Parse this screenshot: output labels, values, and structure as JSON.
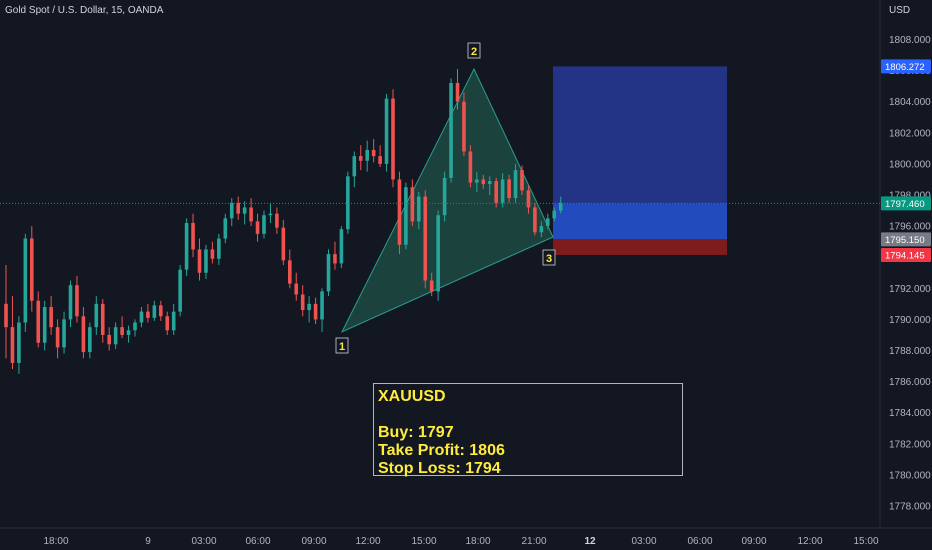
{
  "header": {
    "symbol_title": "Gold Spot / U.S. Dollar, 15, OANDA",
    "currency": "USD"
  },
  "colors": {
    "background": "#131722",
    "bull": "#26a69a",
    "bear": "#ef5350",
    "pattern_fill": "#1e4a42",
    "pattern_stroke": "#2a9d8f",
    "target_zone": "#2a3ea8",
    "stop_zone": "#8b1c1c",
    "entry_zone": "#2962ff",
    "last_price_tag": "#089981",
    "target_tag": "#2962ff",
    "stop_tag": "#f23645",
    "mid_tag": "#787b86",
    "point_label": "#ffeb3b"
  },
  "info_box": {
    "symbol": "XAUUSD",
    "buy": "Buy: 1797",
    "take_profit": "Take Profit: 1806",
    "stop_loss": "Stop Loss: 1794"
  },
  "chart_data": {
    "type": "candlestick",
    "y_ticks": [
      1778,
      1780,
      1782,
      1784,
      1786,
      1788,
      1790,
      1792,
      1794,
      1796,
      1798,
      1800,
      1802,
      1804,
      1806,
      1808
    ],
    "x_ticks": [
      {
        "label": "18:00",
        "bold": false
      },
      {
        "label": "9",
        "bold": false
      },
      {
        "label": "03:00",
        "bold": false
      },
      {
        "label": "06:00",
        "bold": false
      },
      {
        "label": "09:00",
        "bold": false
      },
      {
        "label": "12:00",
        "bold": false
      },
      {
        "label": "15:00",
        "bold": false
      },
      {
        "label": "18:00",
        "bold": false
      },
      {
        "label": "21:00",
        "bold": false
      },
      {
        "label": "12",
        "bold": true
      },
      {
        "label": "03:00",
        "bold": false
      },
      {
        "label": "06:00",
        "bold": false
      },
      {
        "label": "09:00",
        "bold": false
      },
      {
        "label": "12:00",
        "bold": false
      },
      {
        "label": "15:00",
        "bold": false
      }
    ],
    "price_tags": [
      {
        "label": "1806.272",
        "value": 1806.272,
        "kind": "target"
      },
      {
        "label": "1797.460",
        "value": 1797.46,
        "kind": "last"
      },
      {
        "label": "1795.150",
        "value": 1795.15,
        "kind": "mid"
      },
      {
        "label": "1794.145",
        "value": 1794.145,
        "kind": "stop"
      }
    ],
    "pattern_points": [
      {
        "label": "1",
        "value": 1789.2
      },
      {
        "label": "2",
        "value": 1806.1
      },
      {
        "label": "3",
        "value": 1795.3
      }
    ],
    "position": {
      "entry": 1797.46,
      "target": 1806.272,
      "stop": 1794.145
    },
    "candles": [
      [
        1791.0,
        1793.5,
        1787.5,
        1789.5
      ],
      [
        1789.5,
        1791.5,
        1786.8,
        1787.2
      ],
      [
        1787.2,
        1790.2,
        1786.5,
        1789.8
      ],
      [
        1789.8,
        1795.5,
        1789.2,
        1795.2
      ],
      [
        1795.2,
        1796.0,
        1790.5,
        1791.2
      ],
      [
        1791.2,
        1791.8,
        1788.2,
        1788.5
      ],
      [
        1788.5,
        1791.2,
        1788.0,
        1790.8
      ],
      [
        1790.8,
        1791.5,
        1789.0,
        1789.5
      ],
      [
        1789.5,
        1790.0,
        1787.5,
        1788.2
      ],
      [
        1788.2,
        1790.5,
        1787.8,
        1790.0
      ],
      [
        1790.0,
        1792.5,
        1789.5,
        1792.2
      ],
      [
        1792.2,
        1792.8,
        1789.8,
        1790.2
      ],
      [
        1790.2,
        1790.8,
        1787.5,
        1787.9
      ],
      [
        1787.9,
        1789.8,
        1787.5,
        1789.5
      ],
      [
        1789.5,
        1791.5,
        1789.0,
        1791.0
      ],
      [
        1791.0,
        1791.3,
        1788.5,
        1789.0
      ],
      [
        1789.0,
        1789.5,
        1788.0,
        1788.4
      ],
      [
        1788.4,
        1789.8,
        1788.1,
        1789.5
      ],
      [
        1789.5,
        1790.2,
        1788.8,
        1789.0
      ],
      [
        1789.0,
        1789.6,
        1788.5,
        1789.3
      ],
      [
        1789.3,
        1790.0,
        1788.9,
        1789.8
      ],
      [
        1789.8,
        1790.8,
        1789.5,
        1790.5
      ],
      [
        1790.5,
        1791.0,
        1789.8,
        1790.1
      ],
      [
        1790.1,
        1791.2,
        1789.9,
        1790.9
      ],
      [
        1790.9,
        1791.2,
        1789.9,
        1790.2
      ],
      [
        1790.2,
        1790.5,
        1789.0,
        1789.3
      ],
      [
        1789.3,
        1791.0,
        1789.0,
        1790.5
      ],
      [
        1790.5,
        1793.5,
        1790.2,
        1793.2
      ],
      [
        1793.2,
        1796.5,
        1792.8,
        1796.2
      ],
      [
        1796.2,
        1796.8,
        1794.0,
        1794.5
      ],
      [
        1794.5,
        1795.2,
        1792.5,
        1793.0
      ],
      [
        1793.0,
        1794.8,
        1792.6,
        1794.5
      ],
      [
        1794.5,
        1795.0,
        1793.6,
        1793.9
      ],
      [
        1793.9,
        1795.5,
        1793.5,
        1795.2
      ],
      [
        1795.2,
        1796.8,
        1794.9,
        1796.5
      ],
      [
        1796.5,
        1797.8,
        1796.0,
        1797.5
      ],
      [
        1797.5,
        1797.9,
        1796.4,
        1796.8
      ],
      [
        1796.8,
        1797.6,
        1796.1,
        1797.2
      ],
      [
        1797.2,
        1797.8,
        1796.0,
        1796.3
      ],
      [
        1796.3,
        1796.8,
        1795.0,
        1795.5
      ],
      [
        1795.5,
        1797.0,
        1795.2,
        1796.7
      ],
      [
        1796.7,
        1797.5,
        1796.2,
        1796.8
      ],
      [
        1796.8,
        1797.2,
        1795.5,
        1795.9
      ],
      [
        1795.9,
        1796.4,
        1793.5,
        1793.8
      ],
      [
        1793.8,
        1794.5,
        1792.0,
        1792.3
      ],
      [
        1792.3,
        1793.0,
        1791.2,
        1791.6
      ],
      [
        1791.6,
        1792.2,
        1790.2,
        1790.6
      ],
      [
        1790.6,
        1791.5,
        1789.8,
        1791.0
      ],
      [
        1791.0,
        1791.4,
        1789.7,
        1790.0
      ],
      [
        1790.0,
        1792.0,
        1789.2,
        1791.8
      ],
      [
        1791.8,
        1794.5,
        1791.5,
        1794.2
      ],
      [
        1794.2,
        1795.0,
        1793.2,
        1793.6
      ],
      [
        1793.6,
        1796.0,
        1793.3,
        1795.8
      ],
      [
        1795.8,
        1799.5,
        1795.5,
        1799.2
      ],
      [
        1799.2,
        1800.8,
        1798.5,
        1800.5
      ],
      [
        1800.5,
        1801.2,
        1799.6,
        1800.2
      ],
      [
        1800.2,
        1801.5,
        1799.5,
        1800.9
      ],
      [
        1800.9,
        1801.6,
        1800.1,
        1800.5
      ],
      [
        1800.5,
        1801.2,
        1799.8,
        1800.0
      ],
      [
        1800.0,
        1804.5,
        1799.5,
        1804.2
      ],
      [
        1804.2,
        1804.8,
        1798.5,
        1799.0
      ],
      [
        1799.0,
        1799.5,
        1794.2,
        1794.8
      ],
      [
        1794.8,
        1798.8,
        1794.5,
        1798.5
      ],
      [
        1798.5,
        1799.0,
        1796.0,
        1796.3
      ],
      [
        1796.3,
        1798.2,
        1795.8,
        1797.9
      ],
      [
        1797.9,
        1798.3,
        1792.0,
        1792.5
      ],
      [
        1792.5,
        1793.0,
        1791.5,
        1791.8
      ],
      [
        1791.8,
        1797.0,
        1791.2,
        1796.7
      ],
      [
        1796.7,
        1799.5,
        1796.3,
        1799.1
      ],
      [
        1799.1,
        1805.5,
        1798.8,
        1805.2
      ],
      [
        1805.2,
        1806.1,
        1803.5,
        1804.0
      ],
      [
        1804.0,
        1804.6,
        1800.5,
        1800.8
      ],
      [
        1800.8,
        1801.2,
        1798.5,
        1798.8
      ],
      [
        1798.8,
        1799.5,
        1798.2,
        1799.0
      ],
      [
        1799.0,
        1799.3,
        1798.4,
        1798.7
      ],
      [
        1798.7,
        1799.2,
        1798.0,
        1798.9
      ],
      [
        1798.9,
        1799.1,
        1797.2,
        1797.5
      ],
      [
        1797.5,
        1799.4,
        1797.2,
        1799.0
      ],
      [
        1799.0,
        1799.3,
        1797.5,
        1797.8
      ],
      [
        1797.8,
        1800.0,
        1797.5,
        1799.6
      ],
      [
        1799.6,
        1799.9,
        1798.0,
        1798.3
      ],
      [
        1798.3,
        1798.6,
        1796.8,
        1797.2
      ],
      [
        1797.2,
        1797.5,
        1795.4,
        1795.6
      ],
      [
        1795.6,
        1796.3,
        1795.3,
        1796.0
      ],
      [
        1796.0,
        1796.8,
        1795.8,
        1796.5
      ],
      [
        1796.5,
        1797.2,
        1796.3,
        1797.0
      ],
      [
        1797.0,
        1797.9,
        1796.8,
        1797.5
      ]
    ]
  }
}
